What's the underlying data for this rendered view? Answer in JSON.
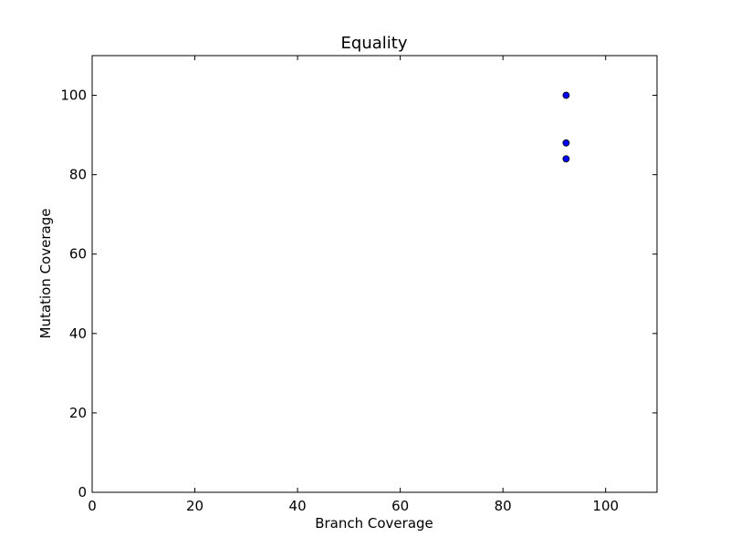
{
  "chart_data": {
    "type": "scatter",
    "title": "Equality",
    "xlabel": "Branch Coverage",
    "ylabel": "Mutation Coverage",
    "xlim": [
      0,
      110
    ],
    "ylim": [
      0,
      110
    ],
    "xticks": [
      0,
      20,
      40,
      60,
      80,
      100
    ],
    "yticks": [
      0,
      20,
      40,
      60,
      80,
      100
    ],
    "grid": false,
    "series": [
      {
        "color": "#0000ff",
        "points": [
          {
            "x": 92.3,
            "y": 100
          },
          {
            "x": 92.3,
            "y": 88
          },
          {
            "x": 92.3,
            "y": 84
          }
        ]
      }
    ]
  }
}
